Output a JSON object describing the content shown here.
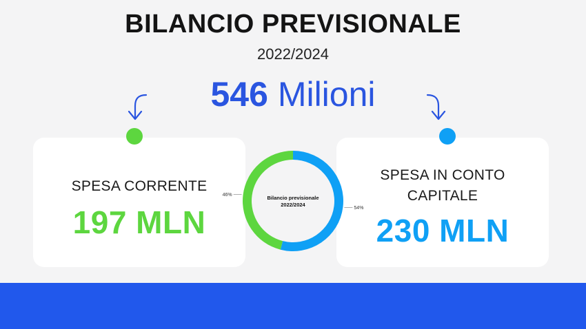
{
  "title": "BILANCIO PREVISIONALE",
  "subtitle": "2022/2024",
  "total": {
    "number": "546",
    "unit": "Milioni"
  },
  "left_card": {
    "label": "SPESA CORRENTE",
    "value": "197 MLN"
  },
  "right_card": {
    "label_line1": "SPESA IN CONTO",
    "label_line2": "CAPITALE",
    "value": "230 MLN"
  },
  "colors": {
    "green": "#5dd63f",
    "blue": "#0fa0f5",
    "accent_blue": "#2a55e0",
    "footer": "#2158ec"
  },
  "chart_data": {
    "type": "pie",
    "donut": true,
    "center_label_line1": "Bilancio previsionale",
    "center_label_line2": "2022/2024",
    "slices": [
      {
        "label": "54%",
        "value": 54,
        "color": "#0fa0f5"
      },
      {
        "label": "46%",
        "value": 46,
        "color": "#5dd63f"
      }
    ]
  }
}
